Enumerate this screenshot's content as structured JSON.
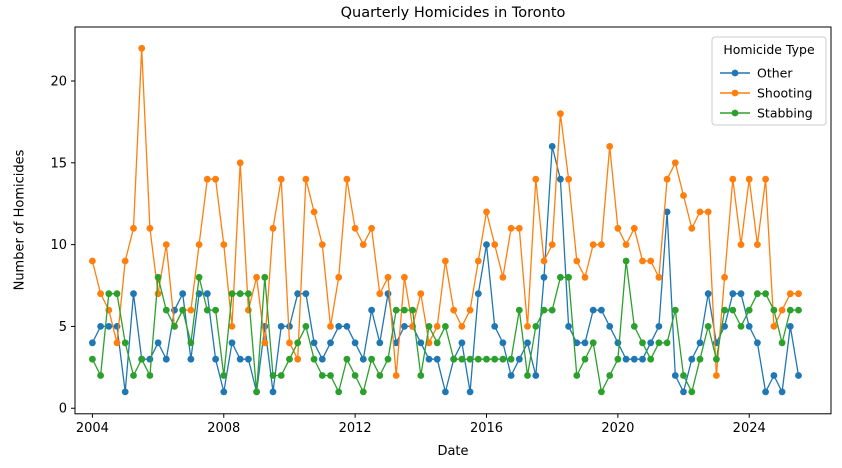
{
  "page": {
    "title": "Quarterly Homicides in Toronto"
  },
  "chart_data": {
    "type": "line",
    "title": "Quarterly Homicides in Toronto",
    "xlabel": "Date",
    "ylabel": "Number of Homicides",
    "x_start": 2004,
    "x_step_years": 0.25,
    "x_period": {
      "start": "2004Q1",
      "end": "2025Q3",
      "freq": "quarterly"
    },
    "xlim": [
      2003.47,
      2026.49
    ],
    "ylim": [
      -0.34,
      23.3
    ],
    "x_tick_labels": [
      "2004",
      "2008",
      "2012",
      "2016",
      "2020",
      "2024"
    ],
    "y_tick_labels": [
      "0",
      "5",
      "10",
      "15",
      "20"
    ],
    "grid": false,
    "legend": {
      "title": "Homicide Type",
      "position": "upper right"
    },
    "series": [
      {
        "name": "Other",
        "color": "#1f77b4",
        "values": [
          4,
          5,
          5,
          5,
          1,
          7,
          3,
          3,
          4,
          3,
          6,
          7,
          3,
          7,
          7,
          3,
          1,
          4,
          3,
          3,
          1,
          5,
          1,
          5,
          5,
          7,
          7,
          4,
          3,
          4,
          5,
          5,
          4,
          3,
          6,
          4,
          7,
          4,
          5,
          5,
          4,
          3,
          3,
          1,
          3,
          4,
          1,
          7,
          10,
          5,
          4,
          2,
          3,
          4,
          2,
          8,
          16,
          14,
          5,
          4,
          4,
          6,
          6,
          5,
          4,
          3,
          3,
          3,
          4,
          5,
          12,
          2,
          1,
          3,
          4,
          7,
          4,
          5,
          7,
          7,
          5,
          4,
          1,
          2,
          1,
          5,
          2
        ]
      },
      {
        "name": "Shooting",
        "color": "#ff7f0e",
        "values": [
          9,
          7,
          6,
          4,
          9,
          11,
          22,
          11,
          7,
          10,
          5,
          6,
          6,
          10,
          14,
          14,
          10,
          5,
          15,
          6,
          8,
          4,
          11,
          14,
          4,
          3,
          14,
          12,
          10,
          5,
          8,
          14,
          11,
          10,
          11,
          7,
          8,
          2,
          8,
          5,
          7,
          4,
          5,
          9,
          6,
          5,
          6,
          9,
          12,
          10,
          8,
          11,
          11,
          5,
          14,
          9,
          10,
          18,
          14,
          9,
          8,
          10,
          10,
          16,
          11,
          10,
          11,
          9,
          9,
          8,
          14,
          15,
          13,
          11,
          12,
          12,
          2,
          8,
          14,
          10,
          14,
          10,
          14,
          5,
          6,
          7,
          7
        ]
      },
      {
        "name": "Stabbing",
        "color": "#2ca02c",
        "values": [
          3,
          2,
          7,
          7,
          4,
          2,
          3,
          2,
          8,
          6,
          5,
          6,
          4,
          8,
          6,
          6,
          2,
          7,
          7,
          7,
          1,
          8,
          2,
          2,
          3,
          4,
          5,
          3,
          2,
          2,
          1,
          3,
          2,
          1,
          3,
          2,
          3,
          6,
          6,
          6,
          2,
          5,
          4,
          5,
          3,
          3,
          3,
          3,
          3,
          3,
          3,
          3,
          6,
          2,
          5,
          6,
          6,
          8,
          8,
          2,
          3,
          4,
          1,
          2,
          3,
          9,
          5,
          4,
          3,
          4,
          4,
          6,
          2,
          1,
          3,
          5,
          3,
          6,
          6,
          5,
          6,
          7,
          7,
          6,
          4,
          6,
          6
        ]
      }
    ]
  }
}
